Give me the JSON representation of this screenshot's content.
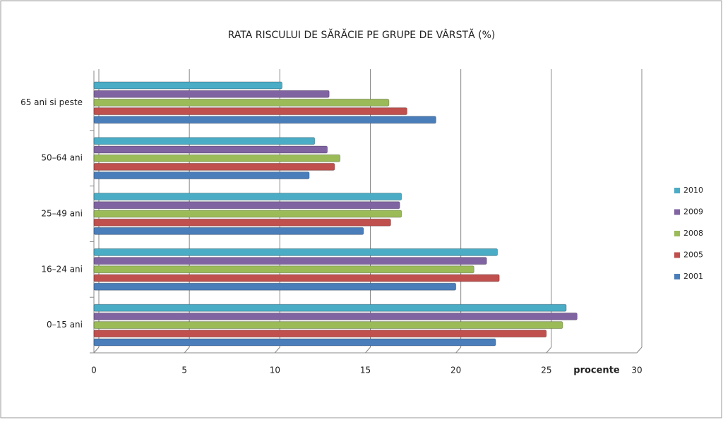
{
  "chart_data": {
    "type": "hbar",
    "title": "RATA RISCULUI DE SĂRĂCIE PE GRUPE DE VÂRSTĂ (%)",
    "x_label": "procente",
    "categories": [
      "0–15 ani",
      "16–24 ani",
      "25–49 ani",
      "50–64 ani",
      "65 ani si peste"
    ],
    "series": [
      {
        "name": "2001",
        "color": "#4a7ebb",
        "values": [
          22.2,
          20.0,
          14.9,
          11.9,
          18.9
        ]
      },
      {
        "name": "2005",
        "color": "#c0504d",
        "values": [
          25.0,
          22.4,
          16.4,
          13.3,
          17.3
        ]
      },
      {
        "name": "2008",
        "color": "#9bbb59",
        "values": [
          25.9,
          21.0,
          17.0,
          13.6,
          16.3
        ]
      },
      {
        "name": "2009",
        "color": "#8064a2",
        "values": [
          26.7,
          21.7,
          16.9,
          12.9,
          13.0
        ]
      },
      {
        "name": "2010",
        "color": "#4bacc6",
        "values": [
          26.1,
          22.3,
          17.0,
          12.2,
          10.4
        ]
      }
    ],
    "xlim": [
      0,
      30
    ],
    "xticks": [
      0,
      5,
      10,
      15,
      20,
      25,
      30
    ],
    "grid": true,
    "legend": "right"
  }
}
